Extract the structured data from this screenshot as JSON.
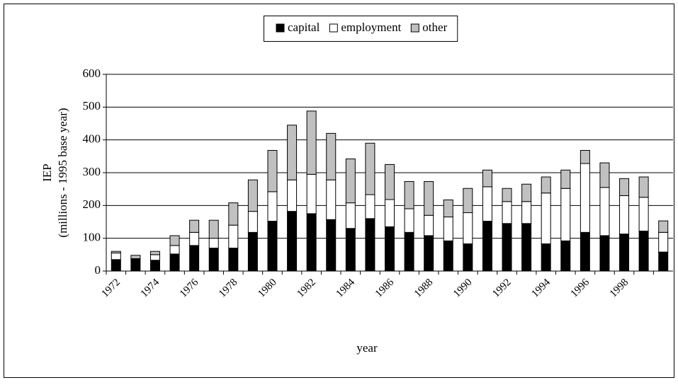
{
  "chart_data": {
    "type": "stacked_bar",
    "x_label": "year",
    "y_label": [
      "IEP",
      "(millions - 1995 base year)"
    ],
    "categories": [
      "1972",
      null,
      "1974",
      null,
      "1976",
      null,
      "1978",
      null,
      "1980",
      null,
      "1982",
      null,
      "1984",
      null,
      "1986",
      null,
      "1988",
      null,
      "1990",
      null,
      "1992",
      null,
      "1994",
      null,
      "1996",
      null,
      "1998",
      null,
      null
    ],
    "series": [
      {
        "name": "capital",
        "color": "#000000",
        "values": [
          35,
          38,
          33,
          52,
          78,
          70,
          70,
          118,
          152,
          182,
          175,
          157,
          130,
          160,
          135,
          118,
          108,
          92,
          83,
          152,
          145,
          145,
          83,
          92,
          118,
          108,
          113,
          122,
          58
        ]
      },
      {
        "name": "employment",
        "color": "#ffffff",
        "values": [
          20,
          0,
          17,
          26,
          40,
          30,
          70,
          64,
          90,
          96,
          120,
          121,
          78,
          73,
          83,
          72,
          62,
          73,
          95,
          105,
          67,
          67,
          155,
          160,
          210,
          147,
          117,
          103,
          60
        ]
      },
      {
        "name": "other",
        "color": "#c0c0c0",
        "values": [
          5,
          10,
          10,
          30,
          37,
          55,
          68,
          96,
          126,
          167,
          193,
          142,
          134,
          157,
          107,
          83,
          103,
          52,
          74,
          51,
          40,
          53,
          49,
          56,
          40,
          75,
          52,
          62,
          35
        ]
      }
    ],
    "ylim": [
      0,
      600
    ],
    "yticks": [
      0,
      100,
      200,
      300,
      400,
      500,
      600
    ],
    "grid": true,
    "legend": "top"
  }
}
